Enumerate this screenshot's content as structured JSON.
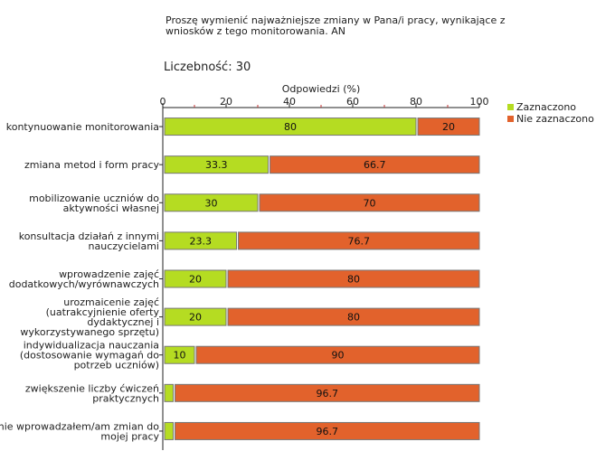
{
  "header": {
    "question": "Proszę wymienić najważniejsze zmiany w Pana/i pracy, wynikające z wniosków z tego monitorowania. AN",
    "count_label": "Liczebność:",
    "count_value": "30"
  },
  "chart_data": {
    "type": "bar",
    "orientation": "horizontal",
    "stacked": true,
    "title": "Proszę wymienić najważniejsze zmiany w Pana/i pracy, wynikające z wniosków z tego monitorowania. AN",
    "xlabel": "Odpowiedzi (%)",
    "ylabel": "",
    "xlim": [
      0,
      100
    ],
    "xticks": [
      0,
      20,
      40,
      60,
      80,
      100
    ],
    "grid": false,
    "legend_position": "right",
    "categories": [
      [
        "kontynuowanie monitorowania"
      ],
      [
        "zmiana metod i form pracy"
      ],
      [
        "mobilizowanie uczniów do",
        "aktywności własnej"
      ],
      [
        "konsultacja działań z innymi",
        "nauczycielami"
      ],
      [
        "wprowadzenie zajęć",
        "dodatkowych/wyrównawczych"
      ],
      [
        "urozmaicenie zajęć",
        "(uatrakcyjnienie oferty",
        "dydaktycznej i",
        "wykorzystywanego sprzętu)"
      ],
      [
        "indywidualizacja nauczania",
        "(dostosowanie wymagań do",
        "potrzeb uczniów)"
      ],
      [
        "zwiększenie liczby ćwiczeń",
        "praktycznych"
      ],
      [
        "nie wprowadzałem/am zmian do",
        "mojej pracy"
      ]
    ],
    "series": [
      {
        "name": "Zaznaczono",
        "color": "#b5dc22",
        "values": [
          80,
          33.3,
          30,
          23.3,
          20,
          20,
          10,
          3.3,
          3.3
        ],
        "labels": [
          "80",
          "33.3",
          "30",
          "23.3",
          "20",
          "20",
          "10",
          "",
          ""
        ]
      },
      {
        "name": "Nie zaznaczono",
        "color": "#e2622c",
        "values": [
          20,
          66.7,
          70,
          76.7,
          80,
          80,
          90,
          96.7,
          96.7
        ],
        "labels": [
          "20",
          "66.7",
          "70",
          "76.7",
          "80",
          "80",
          "90",
          "96.7",
          "96.7"
        ]
      }
    ]
  }
}
